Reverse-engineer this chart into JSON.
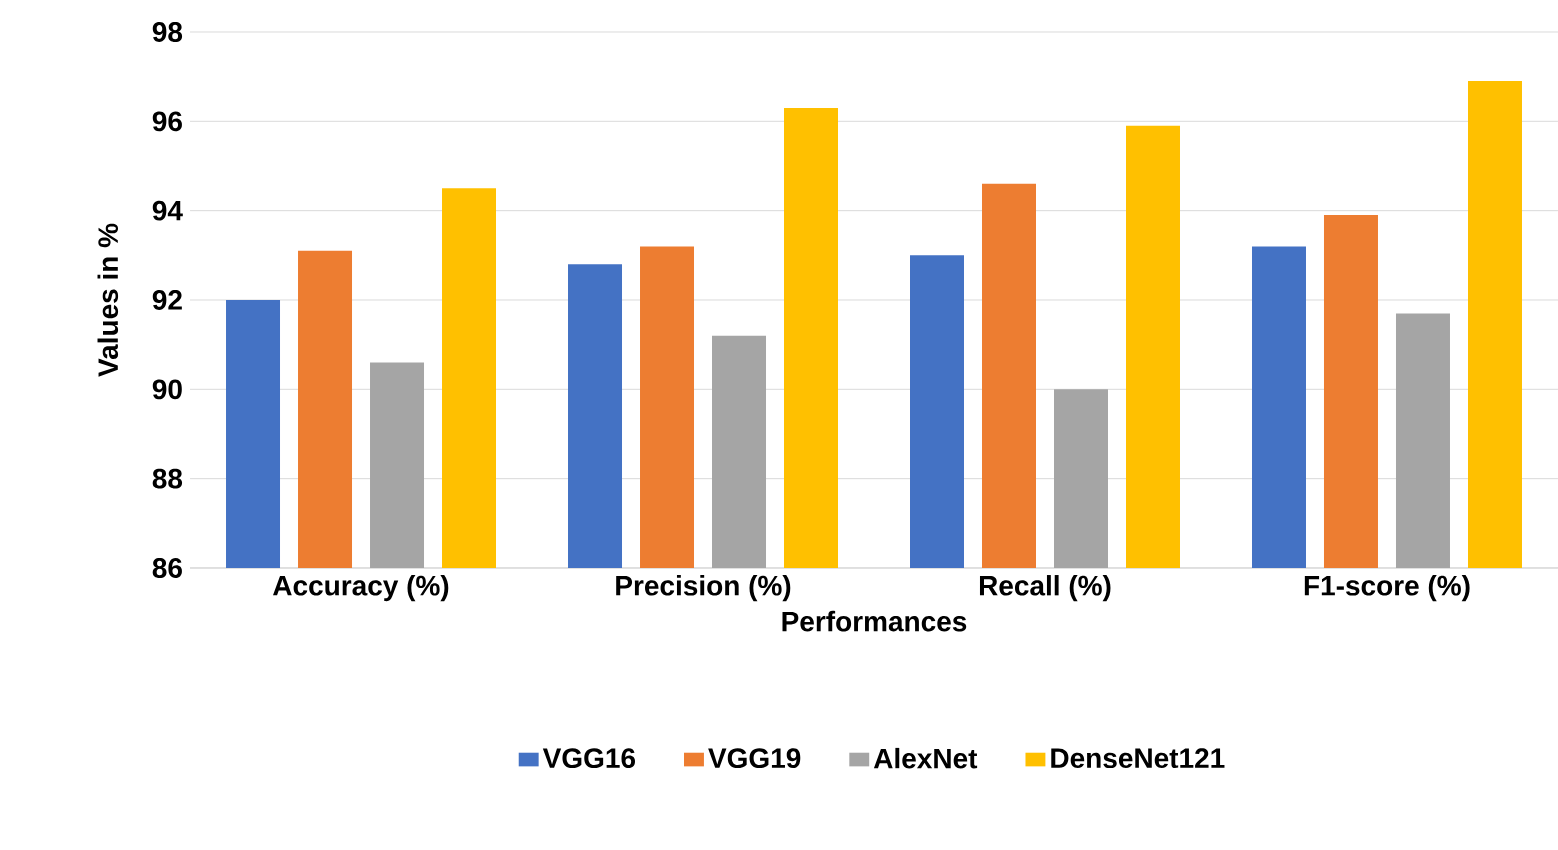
{
  "chart_data": {
    "type": "bar",
    "xlabel": "Performances",
    "ylabel": "Values in %",
    "categories": [
      "Accuracy (%)",
      "Precision (%)",
      "Recall (%)",
      "F1-score (%)"
    ],
    "series": [
      {
        "name": "VGG16",
        "color": "#4472c4",
        "values": [
          92.0,
          92.8,
          93.0,
          93.2
        ]
      },
      {
        "name": "VGG19",
        "color": "#ed7d31",
        "values": [
          93.1,
          93.2,
          94.6,
          93.9
        ]
      },
      {
        "name": "AlexNet",
        "color": "#a5a5a5",
        "values": [
          90.6,
          91.2,
          90.0,
          91.7
        ]
      },
      {
        "name": "DenseNet121",
        "color": "#ffc000",
        "values": [
          94.5,
          96.3,
          95.9,
          96.9
        ]
      }
    ],
    "ylim": [
      86,
      98
    ],
    "yticks": [
      86,
      88,
      90,
      92,
      94,
      96,
      98
    ],
    "grid": "y",
    "legend": "bottom"
  }
}
